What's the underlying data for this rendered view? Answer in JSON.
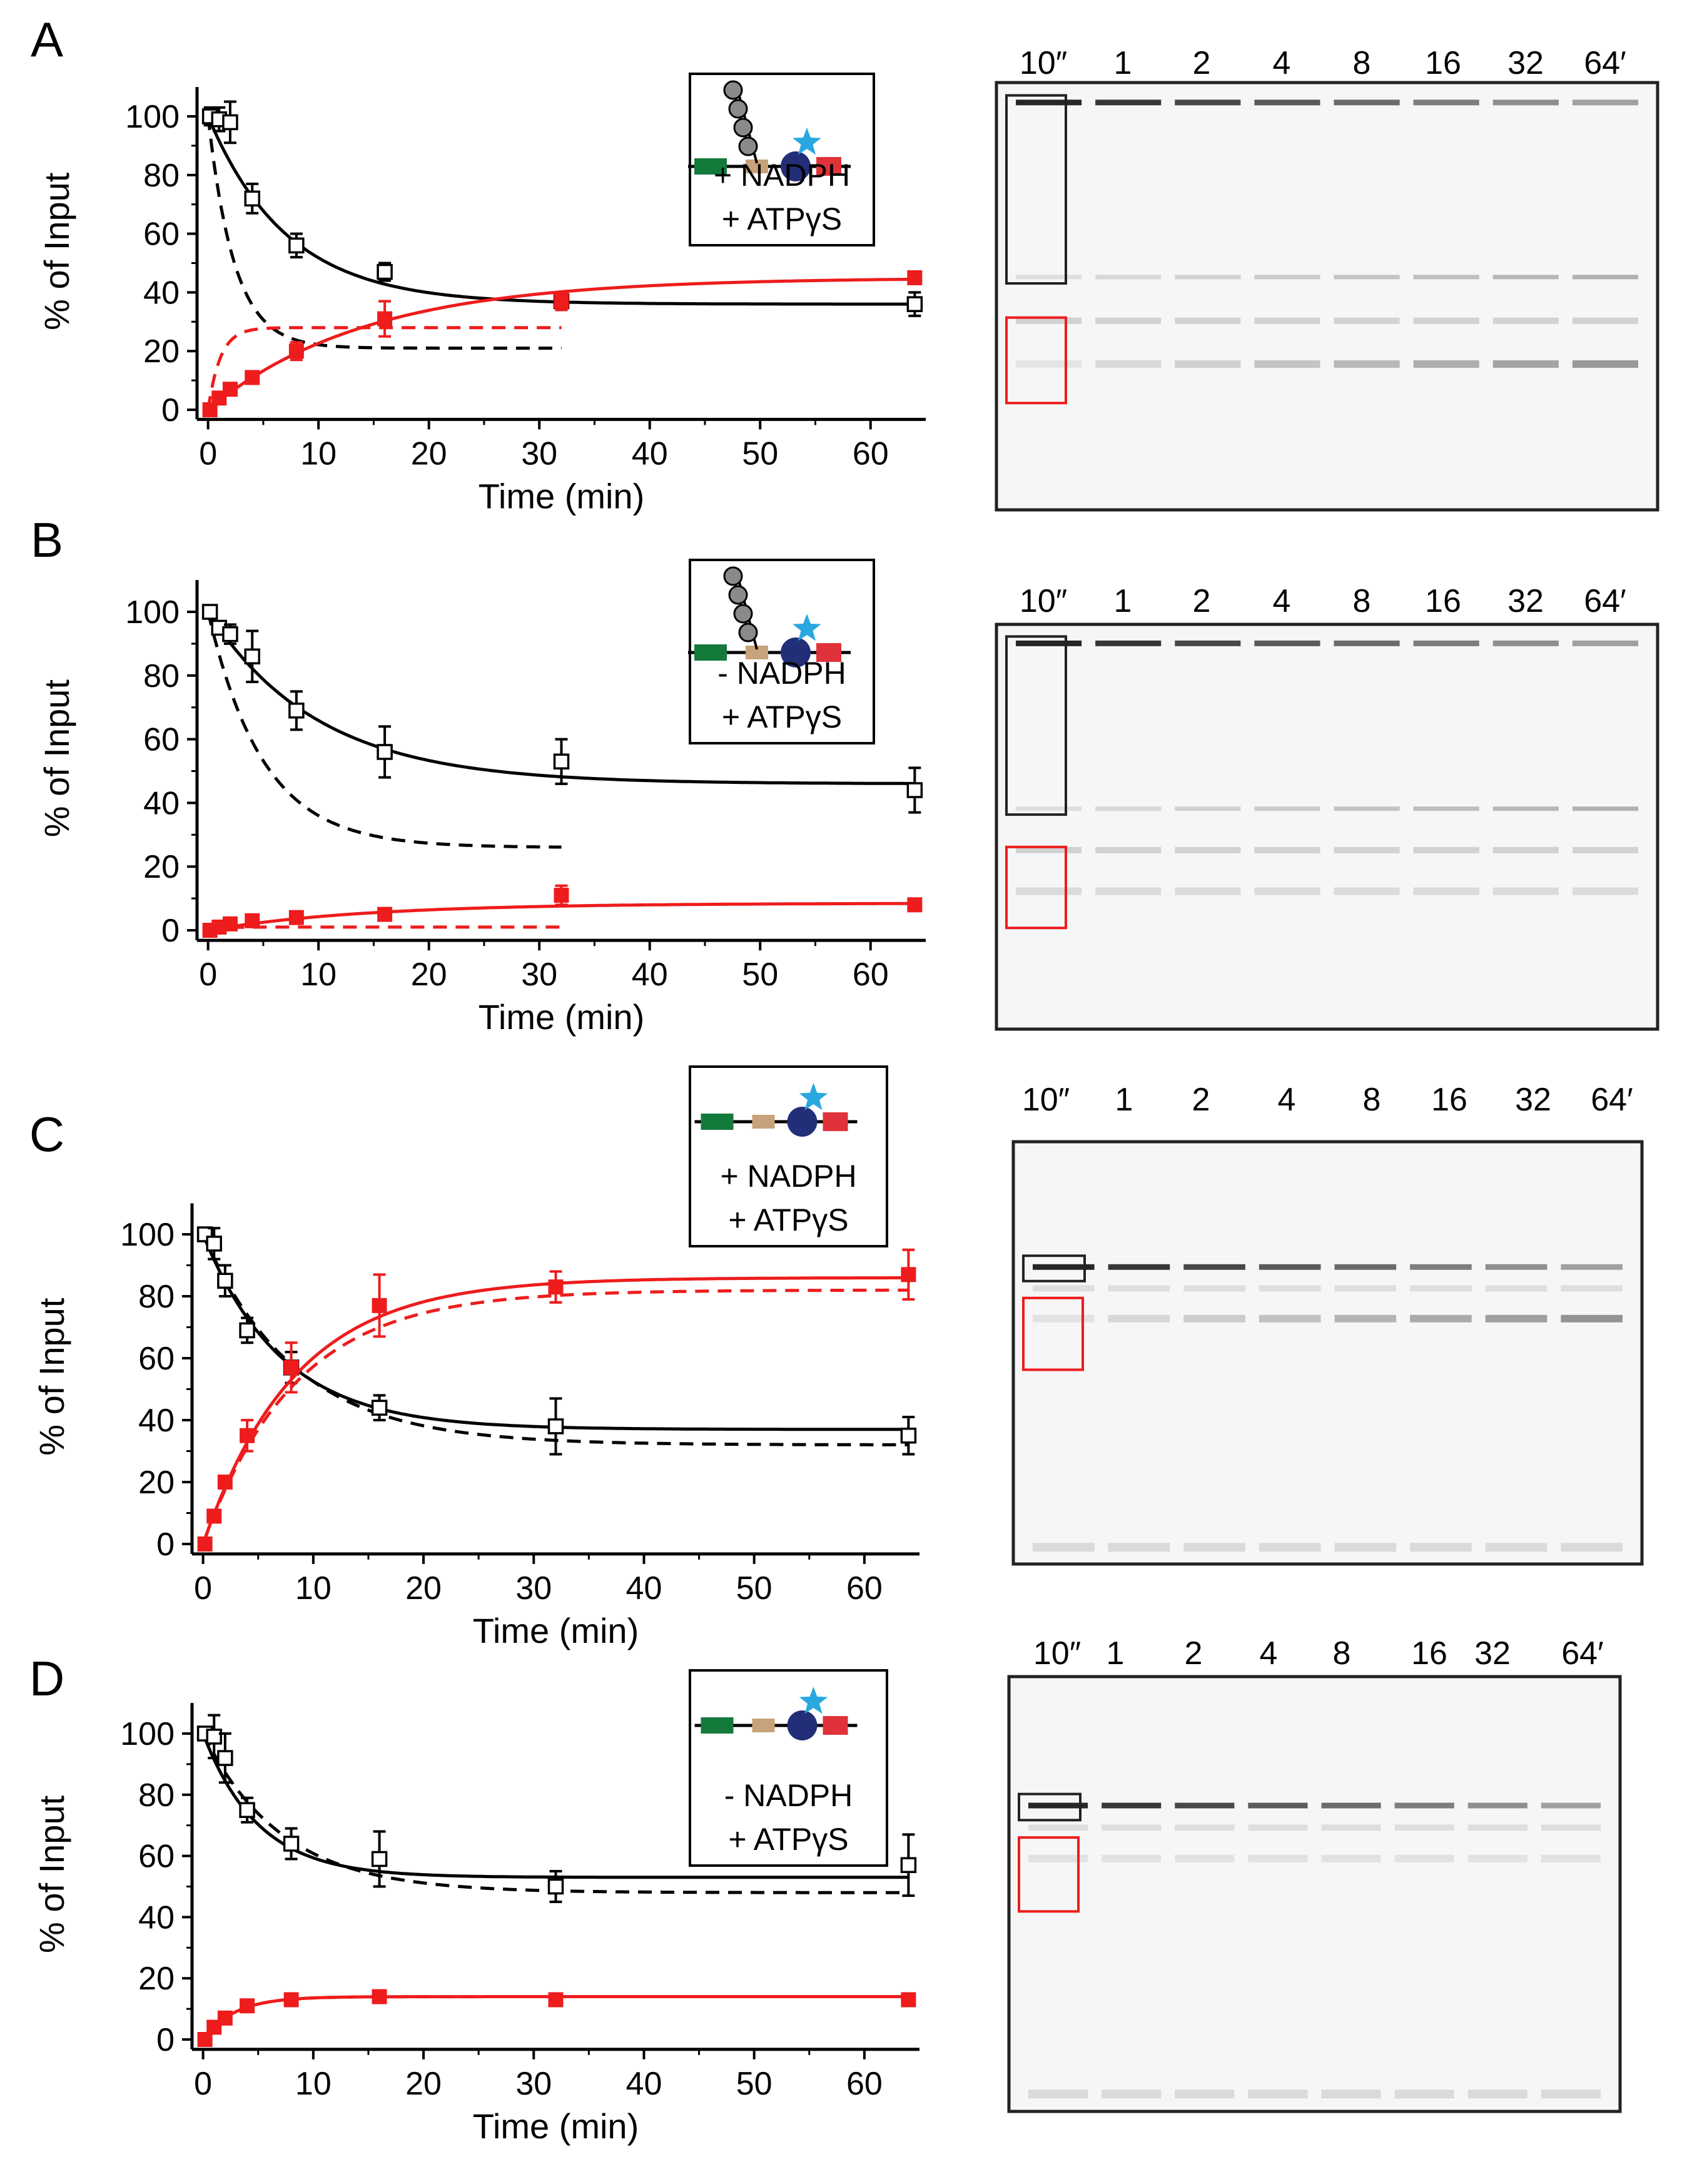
{
  "colors": {
    "substrate": "#000000",
    "product": "#ee1c1c",
    "gel_background": "#f6f6f6",
    "gel_band": "#1a1a1a",
    "glycan_grey": "#8a8a8a",
    "star_blue": "#29a8e0",
    "domain_green": "#137a3c",
    "domain_tan": "#c8a27a",
    "domain_navy": "#232e78",
    "domain_red": "#e0323a"
  },
  "chart_data": [
    {
      "panel": "A",
      "type": "scatter",
      "xlabel": "Time (min)",
      "ylabel": "% of Input",
      "xlim": [
        -1,
        65
      ],
      "ylim": [
        -2,
        110
      ],
      "xticks": [
        0,
        10,
        20,
        30,
        40,
        50,
        60
      ],
      "yticks": [
        0,
        20,
        40,
        60,
        80,
        100
      ],
      "legend": {
        "cartoon": "glycosylated",
        "lines": [
          "+ NADPH",
          "+ ATPγS"
        ]
      },
      "series": [
        {
          "role": "substrate",
          "marker": "open-square",
          "x": [
            0.17,
            1,
            2,
            4,
            8,
            16,
            32,
            64
          ],
          "y": [
            100,
            99,
            98,
            72,
            56,
            47,
            37,
            36
          ],
          "err": [
            3,
            4,
            7,
            5,
            4,
            3,
            3,
            4
          ],
          "fit": {
            "style": "solid",
            "plateau": 36,
            "k": 0.14,
            "xmax": 64
          },
          "sim": {
            "style": "dashed",
            "plateau": 21,
            "k": 0.42,
            "xmax": 32
          }
        },
        {
          "role": "product",
          "marker": "filled-square",
          "x": [
            0.17,
            1,
            2,
            4,
            8,
            16,
            32,
            64
          ],
          "y": [
            0,
            4,
            7,
            11,
            20,
            31,
            37,
            45
          ],
          "err": [
            1,
            1,
            2,
            2,
            3,
            6,
            3,
            2
          ],
          "fit": {
            "style": "solid",
            "plateau": 45,
            "k": 0.07,
            "xmax": 64
          },
          "sim": {
            "style": "dashed",
            "plateau": 28,
            "k": 0.9,
            "xmax": 32
          }
        }
      ]
    },
    {
      "panel": "B",
      "type": "scatter",
      "xlabel": "Time (min)",
      "ylabel": "% of Input",
      "xlim": [
        -1,
        65
      ],
      "ylim": [
        -2,
        110
      ],
      "xticks": [
        0,
        10,
        20,
        30,
        40,
        50,
        60
      ],
      "yticks": [
        0,
        20,
        40,
        60,
        80,
        100
      ],
      "legend": {
        "cartoon": "glycosylated",
        "lines": [
          "- NADPH",
          "+ ATPγS"
        ]
      },
      "series": [
        {
          "role": "substrate",
          "marker": "open-square",
          "x": [
            0.17,
            1,
            2,
            4,
            8,
            16,
            32,
            64
          ],
          "y": [
            100,
            95,
            93,
            86,
            69,
            56,
            53,
            44
          ],
          "err": [
            2,
            2,
            3,
            8,
            6,
            8,
            7,
            7
          ],
          "fit": {
            "style": "solid",
            "plateau": 46,
            "k": 0.1,
            "xmax": 64
          },
          "sim": {
            "style": "dashed",
            "plateau": 26,
            "k": 0.2,
            "xmax": 32
          }
        },
        {
          "role": "product",
          "marker": "filled-square",
          "x": [
            0.17,
            1,
            2,
            4,
            8,
            16,
            32,
            64
          ],
          "y": [
            0,
            1,
            2,
            3,
            4,
            5,
            11,
            8
          ],
          "err": [
            1,
            1,
            1,
            1,
            1,
            1,
            3,
            1
          ],
          "fit": {
            "style": "solid",
            "plateau": 8.5,
            "k": 0.07,
            "xmax": 64
          },
          "sim": {
            "style": "dashed",
            "plateau": 1,
            "k": 1,
            "xmax": 32
          }
        }
      ]
    },
    {
      "panel": "C",
      "type": "scatter",
      "xlabel": "Time (min)",
      "ylabel": "% of Input",
      "xlim": [
        -1,
        65
      ],
      "ylim": [
        -2,
        110
      ],
      "xticks": [
        0,
        10,
        20,
        30,
        40,
        50,
        60
      ],
      "yticks": [
        0,
        20,
        40,
        60,
        80,
        100
      ],
      "legend": {
        "cartoon": "unglycosylated",
        "lines": [
          "+ NADPH",
          "+ ATPγS"
        ]
      },
      "series": [
        {
          "role": "substrate",
          "marker": "open-square",
          "x": [
            0.17,
            1,
            2,
            4,
            8,
            16,
            32,
            64
          ],
          "y": [
            100,
            97,
            85,
            69,
            57,
            44,
            38,
            35
          ],
          "err": [
            1,
            5,
            5,
            4,
            5,
            4,
            9,
            6
          ],
          "fit": {
            "style": "solid",
            "plateau": 37,
            "k": 0.14,
            "xmax": 64
          },
          "sim": {
            "style": "dashed",
            "plateau": 32,
            "k": 0.12,
            "xmax": 64
          }
        },
        {
          "role": "product",
          "marker": "filled-square",
          "x": [
            0.17,
            1,
            2,
            4,
            8,
            16,
            32,
            64
          ],
          "y": [
            0,
            9,
            20,
            35,
            57,
            77,
            83,
            87
          ],
          "err": [
            1,
            1,
            1,
            5,
            8,
            10,
            5,
            8
          ],
          "fit": {
            "style": "solid",
            "plateau": 86,
            "k": 0.12,
            "xmax": 64
          },
          "sim": {
            "style": "dashed",
            "plateau": 82,
            "k": 0.12,
            "xmax": 64
          }
        }
      ]
    },
    {
      "panel": "D",
      "type": "scatter",
      "xlabel": "Time (min)",
      "ylabel": "% of Input",
      "xlim": [
        -1,
        65
      ],
      "ylim": [
        -2,
        110
      ],
      "xticks": [
        0,
        10,
        20,
        30,
        40,
        50,
        60
      ],
      "yticks": [
        0,
        20,
        40,
        60,
        80,
        100
      ],
      "legend": {
        "cartoon": "unglycosylated",
        "lines": [
          "- NADPH",
          "+ ATPγS"
        ]
      },
      "series": [
        {
          "role": "substrate",
          "marker": "open-square",
          "x": [
            0.17,
            1,
            2,
            4,
            8,
            16,
            32,
            64
          ],
          "y": [
            100,
            99,
            92,
            75,
            64,
            59,
            50,
            57
          ],
          "err": [
            1,
            7,
            8,
            4,
            5,
            9,
            5,
            10
          ],
          "fit": {
            "style": "solid",
            "plateau": 53,
            "k": 0.2,
            "xmax": 64
          },
          "sim": {
            "style": "dashed",
            "plateau": 48,
            "k": 0.14,
            "xmax": 64
          }
        },
        {
          "role": "product",
          "marker": "filled-square",
          "x": [
            0.17,
            1,
            2,
            4,
            8,
            16,
            32,
            64
          ],
          "y": [
            0,
            4,
            7,
            11,
            13,
            14,
            13,
            13
          ],
          "err": [
            1,
            1,
            1,
            1,
            2,
            1,
            1,
            1
          ],
          "fit": {
            "style": "solid",
            "plateau": 14,
            "k": 0.35,
            "xmax": 64
          },
          "sim": {
            "style": "dashed",
            "plateau": 14,
            "k": 0.35,
            "xmax": 64
          }
        }
      ]
    }
  ],
  "gels": [
    {
      "panel": "A",
      "lanes": [
        "10″",
        "1",
        "2",
        "4",
        "8",
        "16",
        "32",
        "64′"
      ]
    },
    {
      "panel": "B",
      "lanes": [
        "10″",
        "1",
        "2",
        "4",
        "8",
        "16",
        "32",
        "64′"
      ]
    },
    {
      "panel": "C",
      "lanes": [
        "10″",
        "1",
        "2",
        "4",
        "8",
        "16",
        "32",
        "64′"
      ]
    },
    {
      "panel": "D",
      "lanes": [
        "10″",
        "1",
        "2",
        "4",
        "8",
        "16",
        "32",
        "64′"
      ]
    }
  ]
}
